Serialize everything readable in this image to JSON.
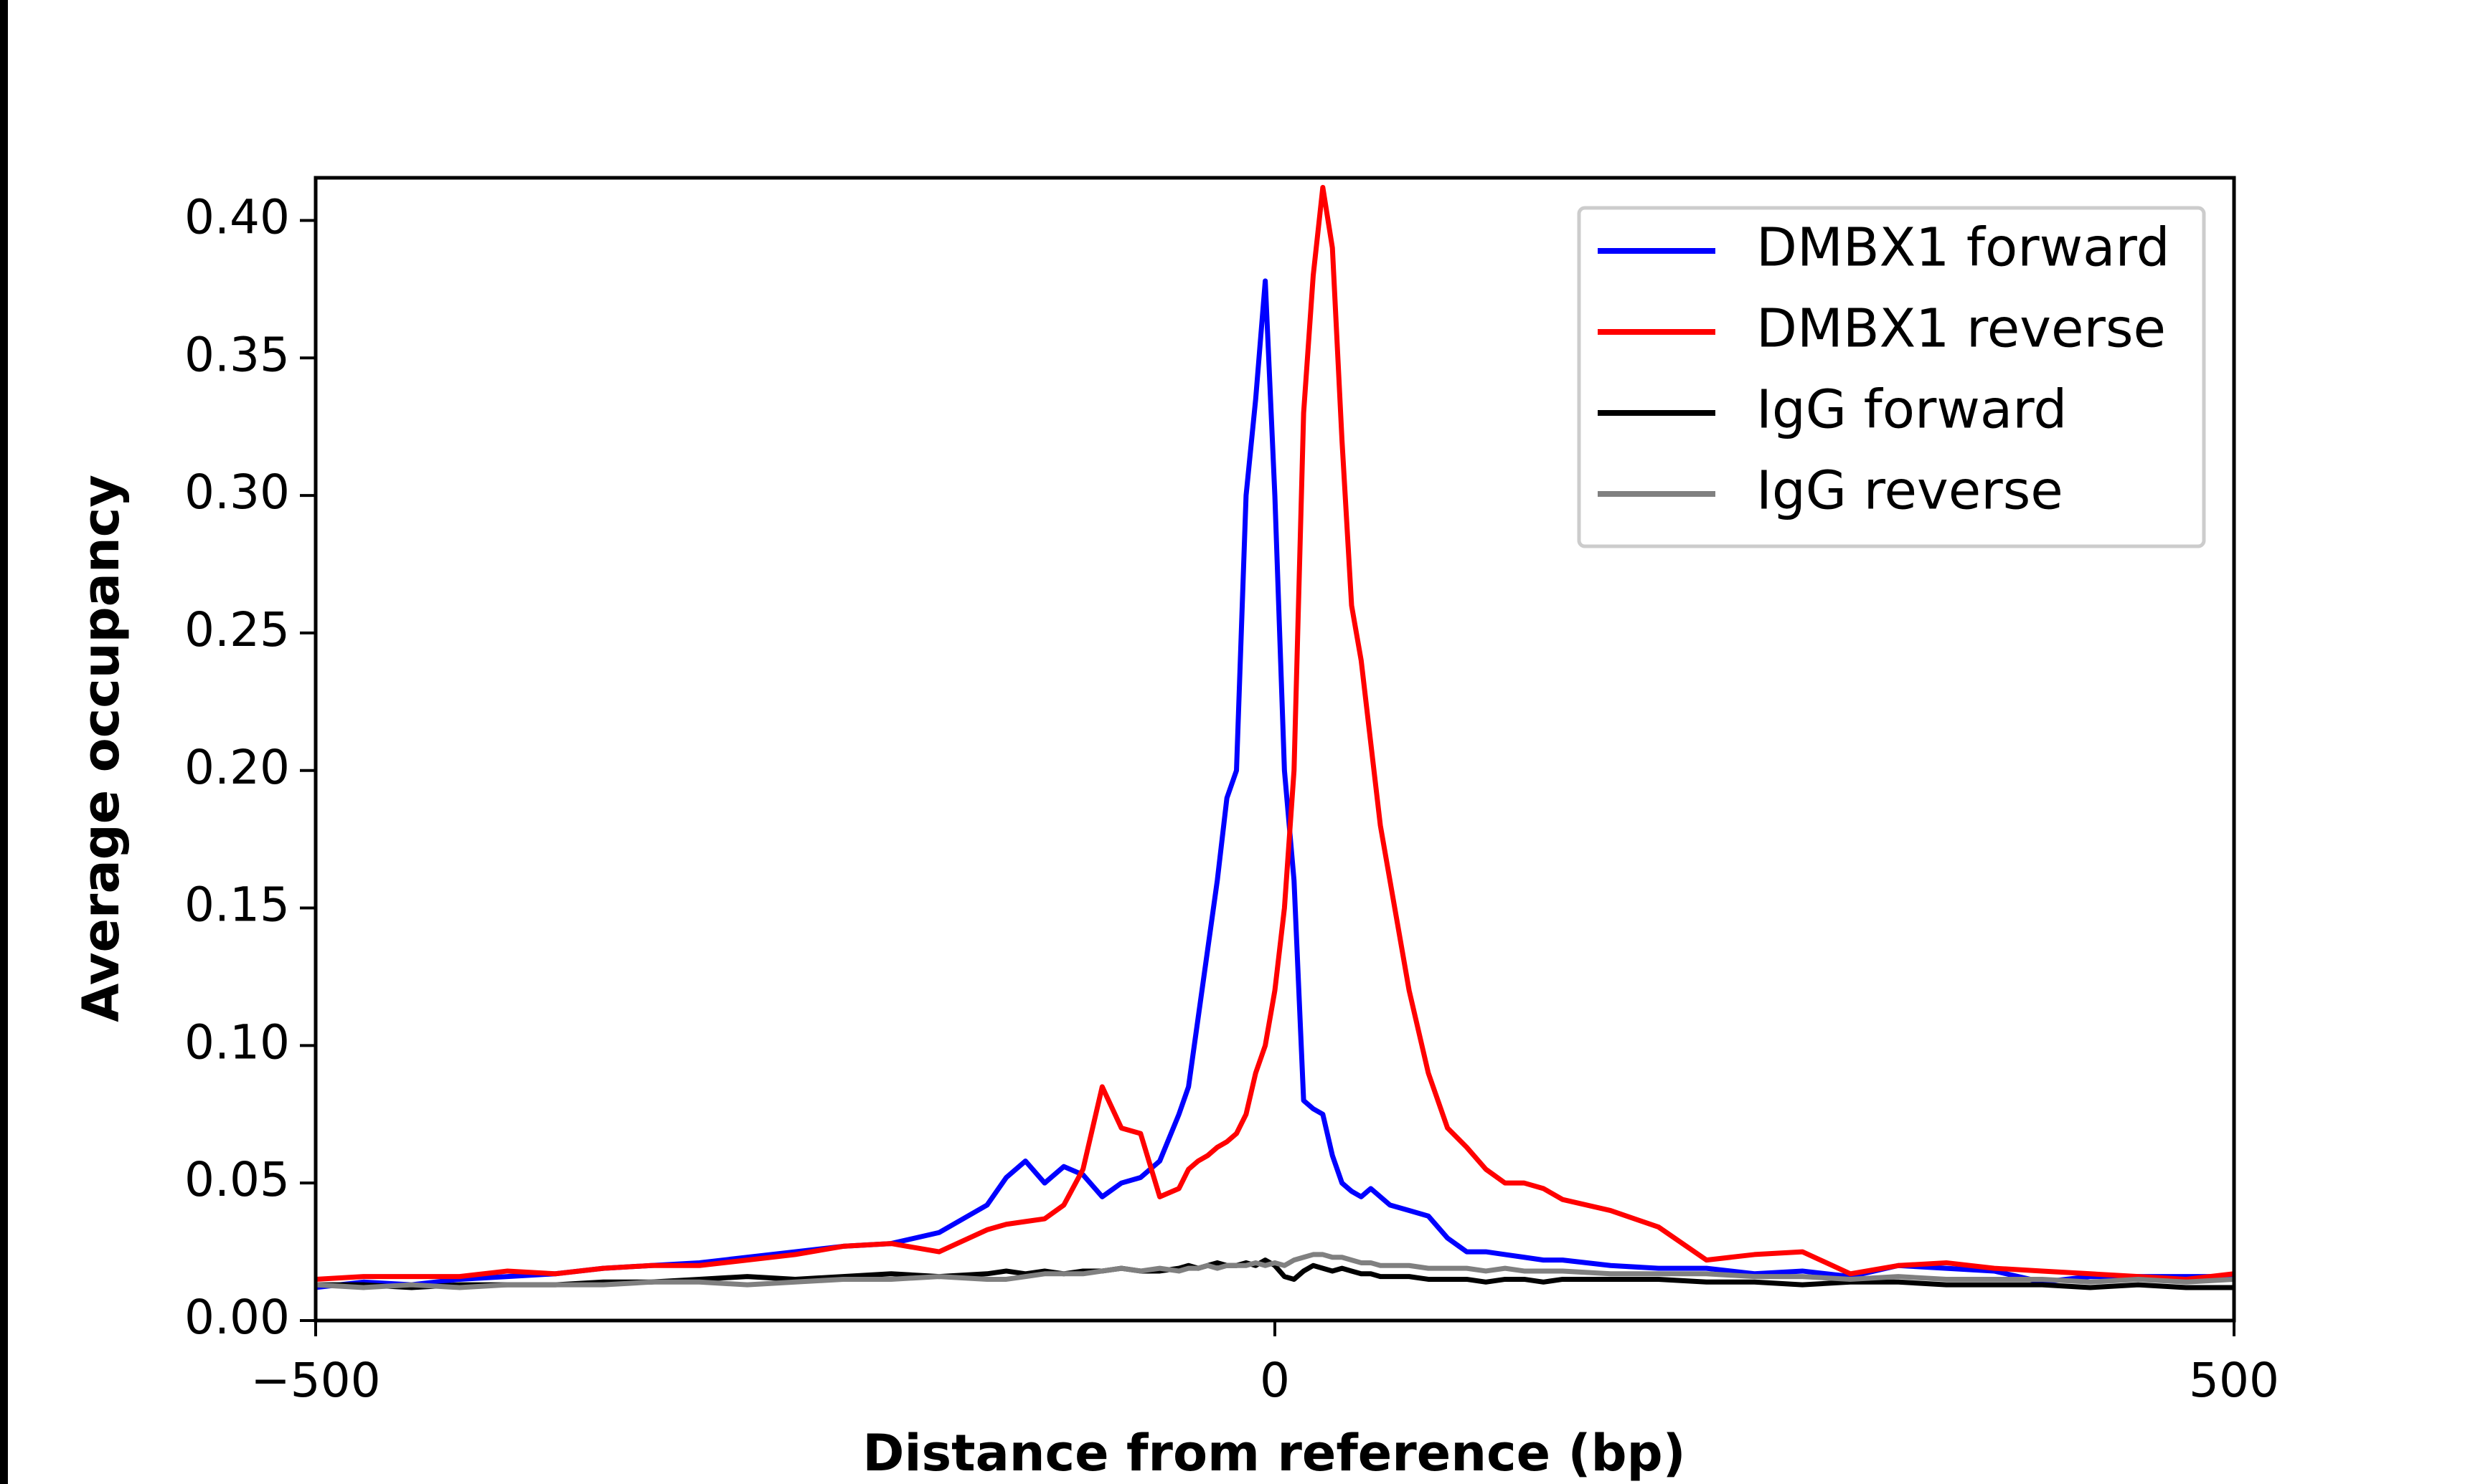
{
  "chart_data": {
    "type": "line",
    "xlabel": "Distance from reference (bp)",
    "ylabel": "Average occupancy",
    "xlim": [
      -500,
      500
    ],
    "ylim": [
      0,
      0.4155
    ],
    "xticks": [
      {
        "value": -500,
        "label": "−500"
      },
      0,
      500
    ],
    "yticks": [
      {
        "value": 0,
        "label": "0.00"
      },
      {
        "value": 0.05,
        "label": "0.05"
      },
      {
        "value": 0.1,
        "label": "0.10"
      },
      {
        "value": 0.15,
        "label": "0.15"
      },
      {
        "value": 0.2,
        "label": "0.20"
      },
      {
        "value": 0.25,
        "label": "0.25"
      },
      {
        "value": 0.3,
        "label": "0.30"
      },
      {
        "value": 0.35,
        "label": "0.35"
      },
      {
        "value": 0.4,
        "label": "0.40"
      }
    ],
    "grid": false,
    "legend": "upper right",
    "x": [
      -500,
      -475,
      -450,
      -425,
      -400,
      -375,
      -350,
      -325,
      -300,
      -275,
      -250,
      -225,
      -200,
      -175,
      -150,
      -140,
      -130,
      -120,
      -110,
      -100,
      -90,
      -80,
      -70,
      -60,
      -50,
      -45,
      -40,
      -35,
      -30,
      -25,
      -20,
      -15,
      -10,
      -5,
      0,
      5,
      10,
      15,
      20,
      25,
      30,
      35,
      40,
      45,
      50,
      55,
      60,
      70,
      80,
      90,
      100,
      110,
      120,
      130,
      140,
      150,
      175,
      200,
      225,
      250,
      275,
      300,
      325,
      350,
      375,
      400,
      425,
      450,
      475,
      500
    ],
    "series": [
      {
        "name": "DMBX1 forward",
        "color": "#0000ff",
        "values": [
          0.012,
          0.014,
          0.013,
          0.015,
          0.016,
          0.017,
          0.019,
          0.02,
          0.021,
          0.023,
          0.025,
          0.027,
          0.028,
          0.032,
          0.042,
          0.052,
          0.058,
          0.05,
          0.056,
          0.053,
          0.045,
          0.05,
          0.052,
          0.058,
          0.075,
          0.085,
          0.11,
          0.135,
          0.16,
          0.19,
          0.2,
          0.3,
          0.335,
          0.378,
          0.3,
          0.2,
          0.16,
          0.08,
          0.077,
          0.075,
          0.06,
          0.05,
          0.047,
          0.045,
          0.048,
          0.045,
          0.042,
          0.04,
          0.038,
          0.03,
          0.025,
          0.025,
          0.024,
          0.023,
          0.022,
          0.022,
          0.02,
          0.019,
          0.019,
          0.017,
          0.018,
          0.016,
          0.02,
          0.019,
          0.018,
          0.014,
          0.016,
          0.016,
          0.016,
          0.016
        ]
      },
      {
        "name": "DMBX1 reverse",
        "color": "#ff0000",
        "values": [
          0.015,
          0.016,
          0.016,
          0.016,
          0.018,
          0.017,
          0.019,
          0.02,
          0.02,
          0.022,
          0.024,
          0.027,
          0.028,
          0.025,
          0.033,
          0.035,
          0.036,
          0.037,
          0.042,
          0.055,
          0.085,
          0.07,
          0.068,
          0.045,
          0.048,
          0.055,
          0.058,
          0.06,
          0.063,
          0.065,
          0.068,
          0.075,
          0.09,
          0.1,
          0.12,
          0.15,
          0.2,
          0.33,
          0.38,
          0.412,
          0.39,
          0.32,
          0.26,
          0.24,
          0.21,
          0.18,
          0.16,
          0.12,
          0.09,
          0.07,
          0.063,
          0.055,
          0.05,
          0.05,
          0.048,
          0.044,
          0.04,
          0.034,
          0.022,
          0.024,
          0.025,
          0.017,
          0.02,
          0.021,
          0.019,
          0.018,
          0.017,
          0.016,
          0.015,
          0.017
        ]
      },
      {
        "name": "IgG forward",
        "color": "#000000",
        "values": [
          0.013,
          0.013,
          0.012,
          0.013,
          0.013,
          0.013,
          0.014,
          0.014,
          0.015,
          0.016,
          0.015,
          0.016,
          0.017,
          0.016,
          0.017,
          0.018,
          0.017,
          0.018,
          0.017,
          0.018,
          0.018,
          0.019,
          0.018,
          0.018,
          0.019,
          0.02,
          0.019,
          0.02,
          0.021,
          0.02,
          0.02,
          0.021,
          0.02,
          0.022,
          0.02,
          0.016,
          0.015,
          0.018,
          0.02,
          0.019,
          0.018,
          0.019,
          0.018,
          0.017,
          0.017,
          0.016,
          0.016,
          0.016,
          0.015,
          0.015,
          0.015,
          0.014,
          0.015,
          0.015,
          0.014,
          0.015,
          0.015,
          0.015,
          0.014,
          0.014,
          0.013,
          0.014,
          0.014,
          0.013,
          0.013,
          0.013,
          0.012,
          0.013,
          0.012,
          0.012
        ]
      },
      {
        "name": "IgG reverse",
        "color": "#808080",
        "values": [
          0.013,
          0.012,
          0.013,
          0.012,
          0.013,
          0.013,
          0.013,
          0.014,
          0.014,
          0.013,
          0.014,
          0.015,
          0.015,
          0.016,
          0.015,
          0.015,
          0.016,
          0.017,
          0.017,
          0.017,
          0.018,
          0.019,
          0.018,
          0.019,
          0.018,
          0.019,
          0.019,
          0.02,
          0.019,
          0.02,
          0.02,
          0.02,
          0.021,
          0.02,
          0.021,
          0.02,
          0.022,
          0.023,
          0.024,
          0.024,
          0.023,
          0.023,
          0.022,
          0.021,
          0.021,
          0.02,
          0.02,
          0.02,
          0.019,
          0.019,
          0.019,
          0.018,
          0.019,
          0.018,
          0.018,
          0.018,
          0.017,
          0.017,
          0.017,
          0.016,
          0.016,
          0.015,
          0.016,
          0.015,
          0.015,
          0.015,
          0.014,
          0.015,
          0.014,
          0.015
        ]
      }
    ]
  }
}
